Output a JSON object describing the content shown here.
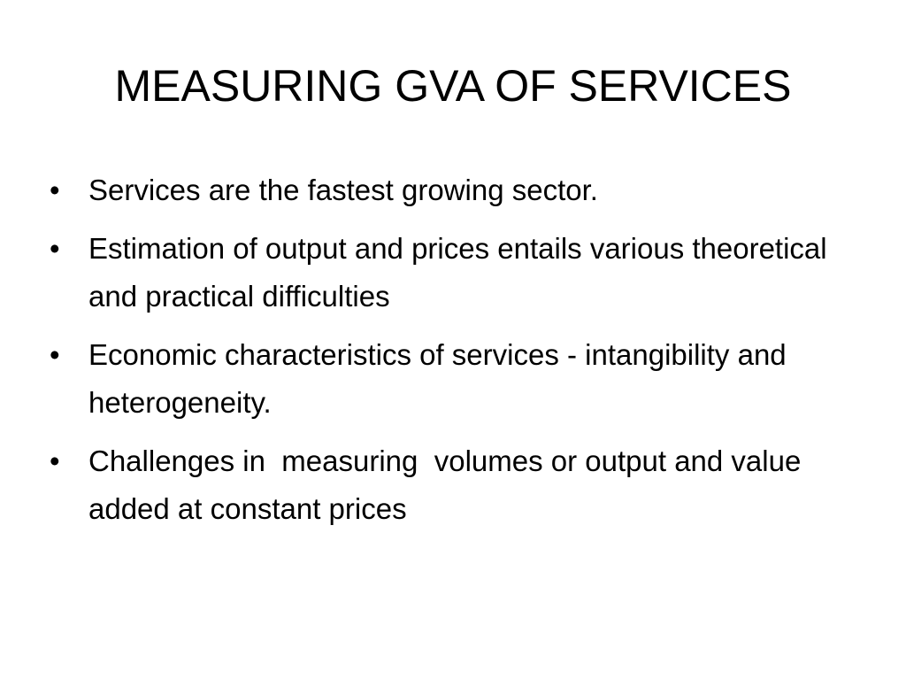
{
  "slide": {
    "title": "MEASURING GVA OF SERVICES",
    "bullets": [
      "Services are the fastest growing sector.",
      "Estimation of output and prices entails various theoretical and practical difficulties",
      "Economic characteristics of services - intangibility and heterogeneity.",
      "Challenges in  measuring  volumes or output and value added at constant prices"
    ]
  }
}
